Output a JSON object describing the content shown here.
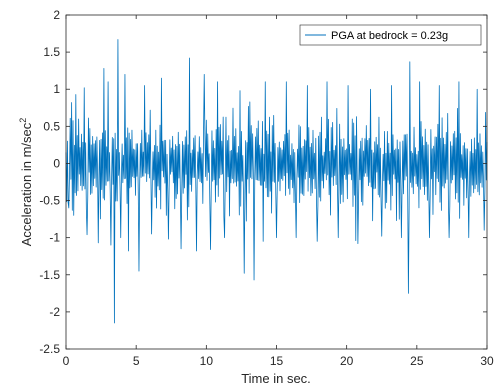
{
  "chart_data": {
    "type": "line",
    "xlabel": "Time in sec.",
    "ylabel": "Acceleration in m/sec",
    "ylabel_superscript": "2",
    "xlim": [
      0,
      30
    ],
    "ylim": [
      -2.5,
      2
    ],
    "x_ticks": [
      0,
      5,
      10,
      15,
      20,
      25,
      30
    ],
    "y_ticks": [
      -2.5,
      -2,
      -1.5,
      -1,
      -0.5,
      0,
      0.5,
      1,
      1.5,
      2
    ],
    "x_tick_labels": [
      "0",
      "5",
      "10",
      "15",
      "20",
      "25",
      "30"
    ],
    "y_tick_labels": [
      "-2.5",
      "-2",
      "-1.5",
      "-1",
      "-0.5",
      "0",
      "0.5",
      "1",
      "1.5",
      "2"
    ],
    "grid": false,
    "legend_position": "top-right",
    "line_color": "#0072BD",
    "series": [
      {
        "name": "PGA at bedrock = 0.23g",
        "sample_interval": 0.05,
        "x_start": 0,
        "peaks": [
          [
            0.1,
            0.3
          ],
          [
            0.2,
            -0.6
          ],
          [
            0.4,
            0.82
          ],
          [
            0.55,
            -0.7
          ],
          [
            1.3,
            1.02
          ],
          [
            1.5,
            -0.96
          ],
          [
            2.3,
            -1.07
          ],
          [
            2.7,
            1.28
          ],
          [
            3.0,
            1.1
          ],
          [
            3.2,
            -1.1
          ],
          [
            3.45,
            -2.15
          ],
          [
            3.7,
            1.67
          ],
          [
            3.9,
            -1.0
          ],
          [
            4.2,
            1.2
          ],
          [
            4.45,
            -1.18
          ],
          [
            5.2,
            -1.45
          ],
          [
            5.6,
            1.05
          ],
          [
            6.1,
            -0.95
          ],
          [
            6.8,
            1.15
          ],
          [
            7.3,
            -1.02
          ],
          [
            8.2,
            -1.15
          ],
          [
            8.8,
            1.42
          ],
          [
            9.3,
            -1.18
          ],
          [
            9.85,
            1.2
          ],
          [
            10.3,
            -1.16
          ],
          [
            10.8,
            1.1
          ],
          [
            11.3,
            -1.0
          ],
          [
            12.4,
            0.98
          ],
          [
            12.7,
            -1.48
          ],
          [
            13.4,
            -1.57
          ],
          [
            14.2,
            1.1
          ],
          [
            15.0,
            -1.0
          ],
          [
            15.7,
            1.1
          ],
          [
            16.4,
            -1.0
          ],
          [
            17.2,
            1.05
          ],
          [
            17.9,
            -1.05
          ],
          [
            18.6,
            1.1
          ],
          [
            19.4,
            -1.0
          ],
          [
            20.1,
            1.05
          ],
          [
            20.8,
            -1.08
          ],
          [
            21.7,
            1.0
          ],
          [
            22.5,
            -0.98
          ],
          [
            23.2,
            1.05
          ],
          [
            23.9,
            -1.0
          ],
          [
            24.4,
            -1.75
          ],
          [
            24.5,
            1.37
          ],
          [
            25.2,
            1.1
          ],
          [
            25.9,
            -1.0
          ],
          [
            26.6,
            1.05
          ],
          [
            27.3,
            -1.0
          ],
          [
            28.0,
            1.1
          ],
          [
            28.7,
            -1.0
          ],
          [
            29.3,
            1.0
          ],
          [
            29.8,
            -0.9
          ]
        ]
      }
    ]
  }
}
